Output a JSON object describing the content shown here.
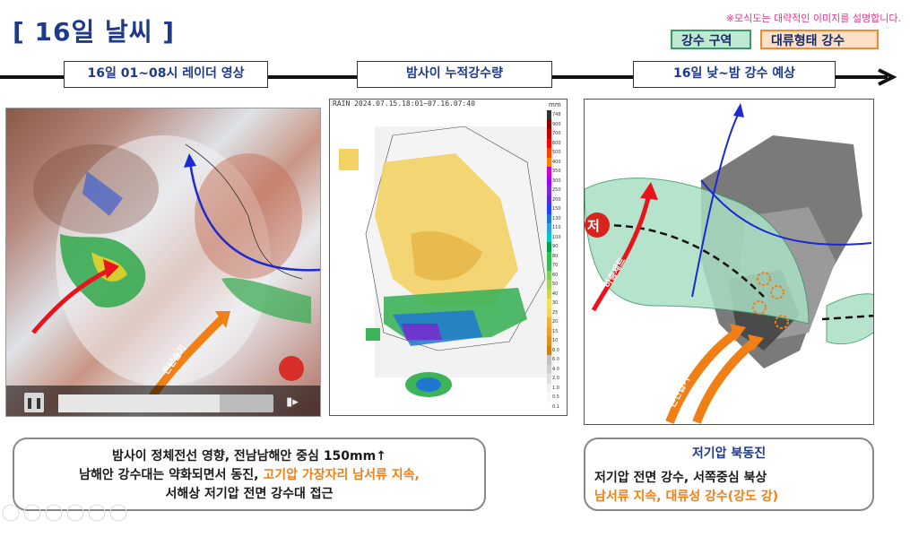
{
  "header": {
    "title": "[ 16일 날씨 ]",
    "note": "※모식도는 대략적인 이미지를 설명합니다.",
    "legend": {
      "rain_zone": "강수 구역",
      "convective_rain": "대류형태 강수"
    }
  },
  "timeline_labels": {
    "radar": "16일 01~08시 레이더 영상",
    "accum": "밤사이 누적강수량",
    "forecast": "16일 낮~밤 강수 예상"
  },
  "radar_panel": {
    "warm_air_label": "온난습기"
  },
  "accum_panel": {
    "header": "RAIN  2024.07.15.18:01~07.16.07:40",
    "unit": "mm",
    "scale_values": [
      "748",
      "900",
      "700",
      "600",
      "500",
      "400",
      "350",
      "300",
      "250",
      "200",
      "150",
      "130",
      "110",
      "100",
      "90",
      "80",
      "70",
      "60",
      "50",
      "40",
      "30",
      "25",
      "20",
      "15",
      "10",
      "8.0",
      "6.0",
      "4.0",
      "2.0",
      "1.0",
      "0.5",
      "0.1"
    ]
  },
  "forecast_panel": {
    "low_symbol": "저",
    "jet_label": "하층제트",
    "warm_air_1": "온난습기",
    "warm_air_2": "온난습기"
  },
  "summary_left": {
    "line1": "밤사이 정체전선 영향, 전남남해안 중심 150mm↑",
    "line2a": "남해안 강수대는 약화되면서 동진, ",
    "line2b": "고기압 가장자리 남서류 지속,",
    "line3": "서해상 저기압 전면 강수대 접근"
  },
  "summary_right": {
    "heading": "저기압 북동진",
    "line1": "저기압 전면 강수, 서쪽중심 북상",
    "line2": "남서류 지속, 대류성 강수(강도 강)"
  },
  "colors": {
    "title": "#1f3a8a",
    "orange": "#f07f16",
    "pink": "#e0358a",
    "rain_zone": "#bde9d3"
  }
}
